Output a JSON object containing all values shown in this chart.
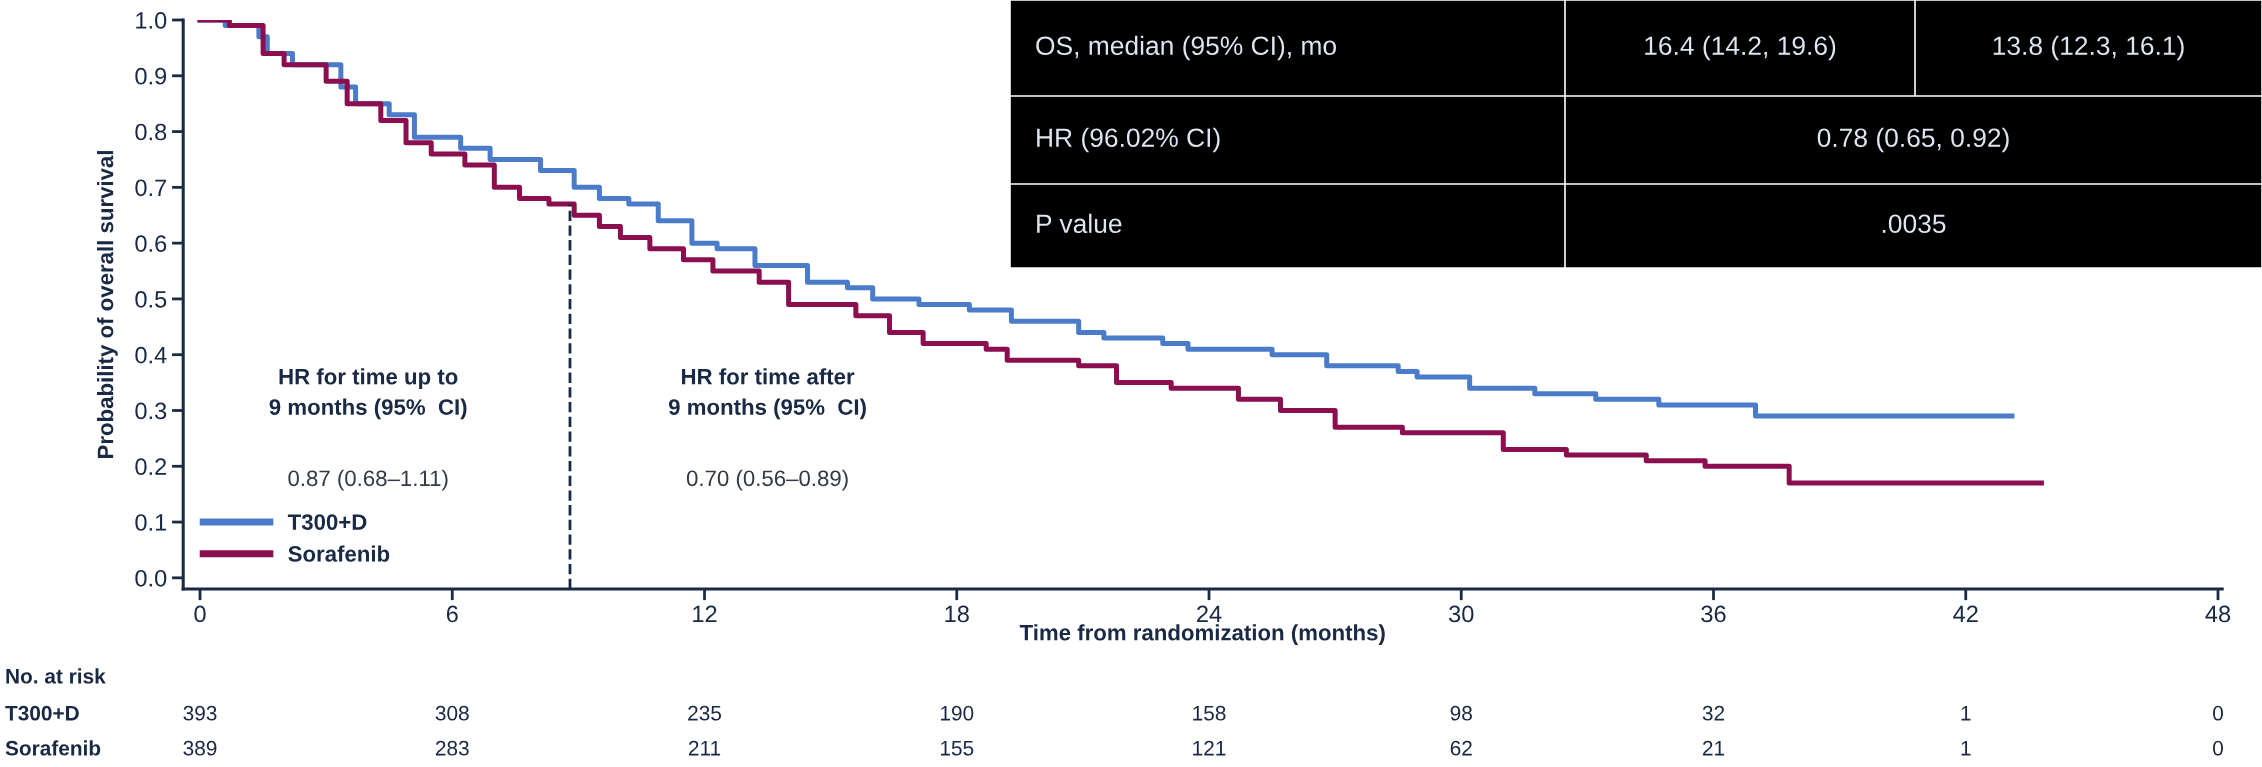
{
  "chart_data": {
    "type": "step",
    "xlabel": "Time from randomization (months)",
    "ylabel": "Probability of overall survival",
    "xlim": [
      -0.4,
      48.1
    ],
    "ylim": [
      -0.02,
      1.0
    ],
    "xticks": [
      0,
      6,
      12,
      18,
      24,
      30,
      36,
      42,
      48
    ],
    "yticks": [
      {
        "value": 0,
        "label": "0.0"
      },
      0.1,
      0.2,
      0.3,
      0.4,
      0.5,
      0.6,
      0.7,
      0.8,
      0.9,
      {
        "value": 1,
        "label": "1.0"
      }
    ],
    "legend": "bottom left",
    "grid": false,
    "marker": "none",
    "line_style": "solid",
    "series": [
      {
        "name": "T300+D",
        "color": "#4a7cc9",
        "x": [
          0,
          0.6,
          1.4,
          1.6,
          2.2,
          3.35,
          3.7,
          4.5,
          5.1,
          6.2,
          6.9,
          8.1,
          8.9,
          9.5,
          10.2,
          10.9,
          11.7,
          12.3,
          13.2,
          14.45,
          15.4,
          16.0,
          17.1,
          18.3,
          19.3,
          20.9,
          21.5,
          22.9,
          23.5,
          25.5,
          26.8,
          28.5,
          28.95,
          30.2,
          31.75,
          33.2,
          34.7,
          37.0,
          43.1
        ],
        "values": [
          1.0,
          0.99,
          0.97,
          0.94,
          0.92,
          0.88,
          0.85,
          0.83,
          0.79,
          0.77,
          0.75,
          0.73,
          0.7,
          0.68,
          0.67,
          0.64,
          0.6,
          0.59,
          0.56,
          0.53,
          0.52,
          0.5,
          0.49,
          0.48,
          0.46,
          0.44,
          0.43,
          0.42,
          0.41,
          0.4,
          0.38,
          0.37,
          0.36,
          0.34,
          0.33,
          0.32,
          0.31,
          0.29,
          0.29
        ]
      },
      {
        "name": "Sorafenib",
        "color": "#8b0f4f",
        "x": [
          0,
          0.7,
          1.5,
          2.0,
          3.0,
          3.5,
          4.3,
          4.9,
          5.5,
          6.3,
          7.0,
          7.6,
          8.3,
          8.9,
          9.5,
          10.0,
          10.7,
          11.5,
          12.2,
          13.3,
          14.0,
          15.6,
          16.4,
          17.2,
          18.7,
          19.2,
          20.9,
          21.8,
          23.1,
          24.7,
          25.7,
          27.0,
          28.6,
          31.0,
          32.5,
          34.4,
          35.8,
          37.8,
          43.8
        ],
        "values": [
          1.0,
          0.99,
          0.94,
          0.92,
          0.89,
          0.85,
          0.82,
          0.78,
          0.76,
          0.74,
          0.7,
          0.68,
          0.67,
          0.65,
          0.63,
          0.61,
          0.59,
          0.57,
          0.55,
          0.53,
          0.49,
          0.47,
          0.44,
          0.42,
          0.41,
          0.39,
          0.38,
          0.35,
          0.34,
          0.32,
          0.3,
          0.27,
          0.26,
          0.23,
          0.22,
          0.21,
          0.2,
          0.17,
          0.17
        ]
      }
    ],
    "ref_lines": [
      {
        "axis": "x",
        "value": 8.8,
        "color": "#1a2a44",
        "line_style": "dashed"
      }
    ],
    "annotations": [
      "HR for time up to\n9 months (95%  CI)",
      "0.87 (0.68–1.11)",
      "HR for time after\n9 months (95%  CI)",
      "0.70 (0.56–0.89)",
      "OS, median (95% CI), mo",
      "16.4 (14.2, 19.6)",
      "13.8 (12.3, 16.1)",
      "HR (96.02% CI)",
      "0.78 (0.65, 0.92)",
      "P value",
      ".0035",
      "No. at risk",
      "T300+D",
      "393",
      "308",
      "235",
      "190",
      "158",
      "98",
      "32",
      "1",
      "0",
      "Sorafenib",
      "389",
      "283",
      "211",
      "155",
      "121",
      "62",
      "21",
      "1",
      "0"
    ]
  }
}
